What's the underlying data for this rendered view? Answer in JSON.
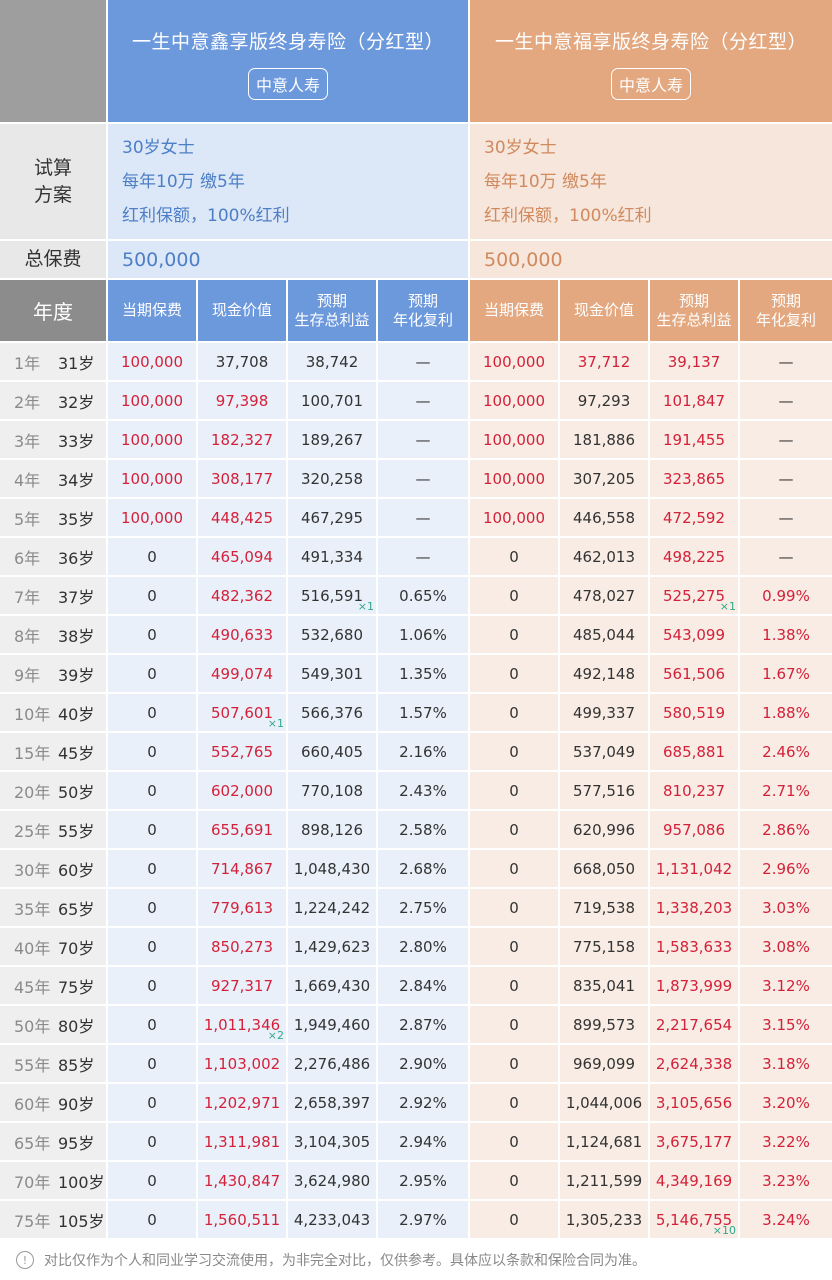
{
  "products": [
    {
      "title": "一生中意鑫享版终身寿险（分红型）",
      "company": "中意人寿",
      "plan": [
        "30岁女士",
        "每年10万 缴5年",
        "红利保额，100%红利"
      ],
      "total_premium": "500,000"
    },
    {
      "title": "一生中意福享版终身寿险（分红型）",
      "company": "中意人寿",
      "plan": [
        "30岁女士",
        "每年10万 缴5年",
        "红利保额，100%红利"
      ],
      "total_premium": "500,000"
    }
  ],
  "labels": {
    "plan_l1": "试算",
    "plan_l2": "方案",
    "total": "总保费",
    "year": "年度"
  },
  "columns": [
    {
      "l1": "当期保费",
      "l2": ""
    },
    {
      "l1": "现金价值",
      "l2": ""
    },
    {
      "l1": "预期",
      "l2": "生存总利益"
    },
    {
      "l1": "预期",
      "l2": "年化复利"
    }
  ],
  "colors": {
    "blue_header": "#6c98dc",
    "orange_header": "#e3a880",
    "highlight_red": "#d4213a",
    "marker_green": "#2fa88a"
  },
  "rows": [
    {
      "year": "1年",
      "age": "31岁",
      "a": [
        "100,000",
        "37,708",
        "38,742",
        "—"
      ],
      "b": [
        "100,000",
        "37,712",
        "39,137",
        "—"
      ],
      "ar": [
        1,
        0,
        0,
        0
      ],
      "br": [
        1,
        1,
        1,
        0
      ]
    },
    {
      "year": "2年",
      "age": "32岁",
      "a": [
        "100,000",
        "97,398",
        "100,701",
        "—"
      ],
      "b": [
        "100,000",
        "97,293",
        "101,847",
        "—"
      ],
      "ar": [
        1,
        1,
        0,
        0
      ],
      "br": [
        1,
        0,
        1,
        0
      ]
    },
    {
      "year": "3年",
      "age": "33岁",
      "a": [
        "100,000",
        "182,327",
        "189,267",
        "—"
      ],
      "b": [
        "100,000",
        "181,886",
        "191,455",
        "—"
      ],
      "ar": [
        1,
        1,
        0,
        0
      ],
      "br": [
        1,
        0,
        1,
        0
      ]
    },
    {
      "year": "4年",
      "age": "34岁",
      "a": [
        "100,000",
        "308,177",
        "320,258",
        "—"
      ],
      "b": [
        "100,000",
        "307,205",
        "323,865",
        "—"
      ],
      "ar": [
        1,
        1,
        0,
        0
      ],
      "br": [
        1,
        0,
        1,
        0
      ]
    },
    {
      "year": "5年",
      "age": "35岁",
      "a": [
        "100,000",
        "448,425",
        "467,295",
        "—"
      ],
      "b": [
        "100,000",
        "446,558",
        "472,592",
        "—"
      ],
      "ar": [
        1,
        1,
        0,
        0
      ],
      "br": [
        1,
        0,
        1,
        0
      ]
    },
    {
      "year": "6年",
      "age": "36岁",
      "a": [
        "0",
        "465,094",
        "491,334",
        "—"
      ],
      "b": [
        "0",
        "462,013",
        "498,225",
        "—"
      ],
      "ar": [
        0,
        1,
        0,
        0
      ],
      "br": [
        0,
        0,
        1,
        0
      ]
    },
    {
      "year": "7年",
      "age": "37岁",
      "a": [
        "0",
        "482,362",
        "516,591",
        "0.65%"
      ],
      "b": [
        "0",
        "478,027",
        "525,275",
        "0.99%"
      ],
      "ar": [
        0,
        1,
        0,
        0
      ],
      "br": [
        0,
        0,
        1,
        1
      ],
      "am": {
        "2": "×1"
      },
      "bm": {
        "2": "×1"
      }
    },
    {
      "year": "8年",
      "age": "38岁",
      "a": [
        "0",
        "490,633",
        "532,680",
        "1.06%"
      ],
      "b": [
        "0",
        "485,044",
        "543,099",
        "1.38%"
      ],
      "ar": [
        0,
        1,
        0,
        0
      ],
      "br": [
        0,
        0,
        1,
        1
      ]
    },
    {
      "year": "9年",
      "age": "39岁",
      "a": [
        "0",
        "499,074",
        "549,301",
        "1.35%"
      ],
      "b": [
        "0",
        "492,148",
        "561,506",
        "1.67%"
      ],
      "ar": [
        0,
        1,
        0,
        0
      ],
      "br": [
        0,
        0,
        1,
        1
      ]
    },
    {
      "year": "10年",
      "age": "40岁",
      "a": [
        "0",
        "507,601",
        "566,376",
        "1.57%"
      ],
      "b": [
        "0",
        "499,337",
        "580,519",
        "1.88%"
      ],
      "ar": [
        0,
        1,
        0,
        0
      ],
      "br": [
        0,
        0,
        1,
        1
      ],
      "am": {
        "1": "×1"
      }
    },
    {
      "year": "15年",
      "age": "45岁",
      "a": [
        "0",
        "552,765",
        "660,405",
        "2.16%"
      ],
      "b": [
        "0",
        "537,049",
        "685,881",
        "2.46%"
      ],
      "ar": [
        0,
        1,
        0,
        0
      ],
      "br": [
        0,
        0,
        1,
        1
      ]
    },
    {
      "year": "20年",
      "age": "50岁",
      "a": [
        "0",
        "602,000",
        "770,108",
        "2.43%"
      ],
      "b": [
        "0",
        "577,516",
        "810,237",
        "2.71%"
      ],
      "ar": [
        0,
        1,
        0,
        0
      ],
      "br": [
        0,
        0,
        1,
        1
      ]
    },
    {
      "year": "25年",
      "age": "55岁",
      "a": [
        "0",
        "655,691",
        "898,126",
        "2.58%"
      ],
      "b": [
        "0",
        "620,996",
        "957,086",
        "2.86%"
      ],
      "ar": [
        0,
        1,
        0,
        0
      ],
      "br": [
        0,
        0,
        1,
        1
      ]
    },
    {
      "year": "30年",
      "age": "60岁",
      "a": [
        "0",
        "714,867",
        "1,048,430",
        "2.68%"
      ],
      "b": [
        "0",
        "668,050",
        "1,131,042",
        "2.96%"
      ],
      "ar": [
        0,
        1,
        0,
        0
      ],
      "br": [
        0,
        0,
        1,
        1
      ]
    },
    {
      "year": "35年",
      "age": "65岁",
      "a": [
        "0",
        "779,613",
        "1,224,242",
        "2.75%"
      ],
      "b": [
        "0",
        "719,538",
        "1,338,203",
        "3.03%"
      ],
      "ar": [
        0,
        1,
        0,
        0
      ],
      "br": [
        0,
        0,
        1,
        1
      ]
    },
    {
      "year": "40年",
      "age": "70岁",
      "a": [
        "0",
        "850,273",
        "1,429,623",
        "2.80%"
      ],
      "b": [
        "0",
        "775,158",
        "1,583,633",
        "3.08%"
      ],
      "ar": [
        0,
        1,
        0,
        0
      ],
      "br": [
        0,
        0,
        1,
        1
      ]
    },
    {
      "year": "45年",
      "age": "75岁",
      "a": [
        "0",
        "927,317",
        "1,669,430",
        "2.84%"
      ],
      "b": [
        "0",
        "835,041",
        "1,873,999",
        "3.12%"
      ],
      "ar": [
        0,
        1,
        0,
        0
      ],
      "br": [
        0,
        0,
        1,
        1
      ]
    },
    {
      "year": "50年",
      "age": "80岁",
      "a": [
        "0",
        "1,011,346",
        "1,949,460",
        "2.87%"
      ],
      "b": [
        "0",
        "899,573",
        "2,217,654",
        "3.15%"
      ],
      "ar": [
        0,
        1,
        0,
        0
      ],
      "br": [
        0,
        0,
        1,
        1
      ],
      "am": {
        "1": "×2"
      }
    },
    {
      "year": "55年",
      "age": "85岁",
      "a": [
        "0",
        "1,103,002",
        "2,276,486",
        "2.90%"
      ],
      "b": [
        "0",
        "969,099",
        "2,624,338",
        "3.18%"
      ],
      "ar": [
        0,
        1,
        0,
        0
      ],
      "br": [
        0,
        0,
        1,
        1
      ]
    },
    {
      "year": "60年",
      "age": "90岁",
      "a": [
        "0",
        "1,202,971",
        "2,658,397",
        "2.92%"
      ],
      "b": [
        "0",
        "1,044,006",
        "3,105,656",
        "3.20%"
      ],
      "ar": [
        0,
        1,
        0,
        0
      ],
      "br": [
        0,
        0,
        1,
        1
      ]
    },
    {
      "year": "65年",
      "age": "95岁",
      "a": [
        "0",
        "1,311,981",
        "3,104,305",
        "2.94%"
      ],
      "b": [
        "0",
        "1,124,681",
        "3,675,177",
        "3.22%"
      ],
      "ar": [
        0,
        1,
        0,
        0
      ],
      "br": [
        0,
        0,
        1,
        1
      ]
    },
    {
      "year": "70年",
      "age": "100岁",
      "a": [
        "0",
        "1,430,847",
        "3,624,980",
        "2.95%"
      ],
      "b": [
        "0",
        "1,211,599",
        "4,349,169",
        "3.23%"
      ],
      "ar": [
        0,
        1,
        0,
        0
      ],
      "br": [
        0,
        0,
        1,
        1
      ]
    },
    {
      "year": "75年",
      "age": "105岁",
      "a": [
        "0",
        "1,560,511",
        "4,233,043",
        "2.97%"
      ],
      "b": [
        "0",
        "1,305,233",
        "5,146,755",
        "3.24%"
      ],
      "ar": [
        0,
        1,
        0,
        0
      ],
      "br": [
        0,
        0,
        1,
        1
      ],
      "bm": {
        "2": "×10"
      }
    }
  ],
  "footer": {
    "icon": "info-icon",
    "text": "对比仅作为个人和同业学习交流使用，为非完全对比，仅供参考。具体应以条款和保险合同为准。"
  }
}
